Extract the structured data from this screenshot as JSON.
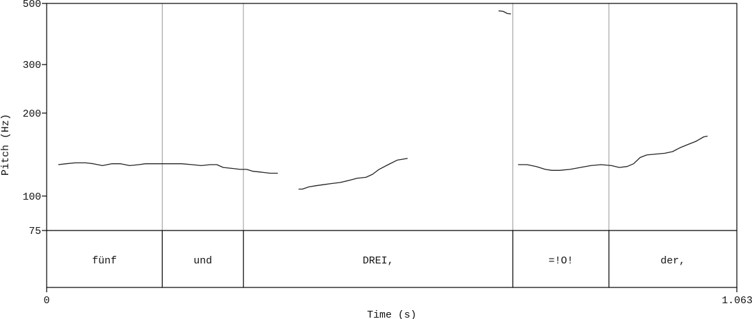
{
  "chart_data": {
    "type": "line",
    "title": "",
    "xlabel": "Time (s)",
    "ylabel": "Pitch (Hz)",
    "xlim": [
      0,
      1.063
    ],
    "ylim": [
      75,
      500
    ],
    "yscale": "log",
    "x_tick_labels": [
      "0",
      "1.063"
    ],
    "y_ticks": [
      75,
      100,
      200,
      300,
      500
    ],
    "y_tick_labels": [
      "75",
      "100",
      "200",
      "300",
      "500"
    ],
    "series": [
      {
        "name": "pitch-contour-1",
        "x": [
          0.018,
          0.03,
          0.044,
          0.06,
          0.072,
          0.086,
          0.1,
          0.114,
          0.128,
          0.142,
          0.152,
          0.164,
          0.178,
          0.192,
          0.208,
          0.224,
          0.238,
          0.252,
          0.262,
          0.272,
          0.286,
          0.298,
          0.308,
          0.318,
          0.332,
          0.344,
          0.356
        ],
        "y": [
          130,
          131,
          132,
          132,
          131,
          129,
          131,
          131,
          129,
          130,
          131,
          131,
          131,
          131,
          131,
          130,
          129,
          130,
          130,
          127,
          126,
          125,
          125,
          123,
          122,
          121,
          121
        ]
      },
      {
        "name": "pitch-contour-2",
        "x": [
          0.388,
          0.394,
          0.404,
          0.414,
          0.426,
          0.438,
          0.452,
          0.466,
          0.478,
          0.492,
          0.502,
          0.512,
          0.526,
          0.54,
          0.556
        ],
        "y": [
          106,
          106,
          108,
          109,
          110,
          111,
          112,
          114,
          116,
          117,
          120,
          125,
          130,
          135,
          137
        ]
      },
      {
        "name": "pitch-contour-3",
        "x": [
          0.696,
          0.703,
          0.709,
          0.715
        ],
        "y": [
          470,
          468,
          460,
          458
        ]
      },
      {
        "name": "pitch-contour-4",
        "x": [
          0.726,
          0.74,
          0.754,
          0.768,
          0.778,
          0.79,
          0.806,
          0.822,
          0.838,
          0.854,
          0.87,
          0.882,
          0.894,
          0.904,
          0.914,
          0.924,
          0.938,
          0.952,
          0.964,
          0.976,
          0.988,
          1.0,
          1.012,
          1.018
        ],
        "y": [
          130,
          130,
          128,
          125,
          124,
          124,
          125,
          127,
          129,
          130,
          129,
          127,
          128,
          131,
          138,
          141,
          142,
          143,
          145,
          150,
          154,
          158,
          164,
          165
        ]
      }
    ],
    "tier": {
      "boundaries": [
        0.178,
        0.303,
        0.718,
        0.866
      ],
      "intervals": [
        {
          "label": "fünf",
          "start": 0,
          "end": 0.178
        },
        {
          "label": "und",
          "start": 0.178,
          "end": 0.303
        },
        {
          "label": "DREI,",
          "start": 0.303,
          "end": 0.718
        },
        {
          "label": "=!O!",
          "start": 0.718,
          "end": 0.866
        },
        {
          "label": "der,",
          "start": 0.866,
          "end": 1.063
        }
      ]
    }
  }
}
